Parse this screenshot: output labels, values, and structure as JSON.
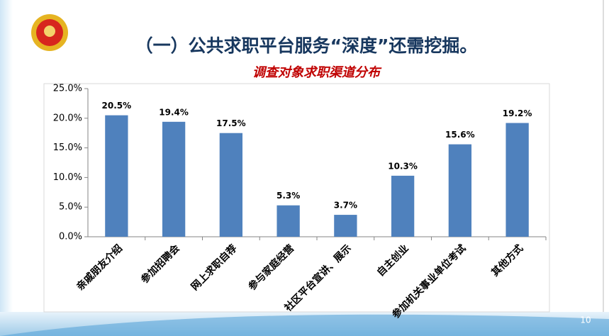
{
  "slide": {
    "title": "（一）公共求职平台服务“深度”还需挖掘。",
    "page_number": "10"
  },
  "chart_data": {
    "type": "bar",
    "title": "调查对象求职渠道分布",
    "categories": [
      "亲戚朋友介绍",
      "参加招聘会",
      "网上求职自荐",
      "参与家庭经营",
      "社区平台宣讲、展示",
      "自主创业",
      "参加机关事业单位考试",
      "其他方式"
    ],
    "values": [
      20.5,
      19.4,
      17.5,
      5.3,
      3.7,
      10.3,
      15.6,
      19.2
    ],
    "value_labels": [
      "20.5%",
      "19.4%",
      "17.5%",
      "5.3%",
      "3.7%",
      "10.3%",
      "15.6%",
      "19.2%"
    ],
    "color": "#4f81bd",
    "ylim": [
      0,
      25
    ],
    "yticks": [
      {
        "value": 0,
        "label": "0.0%"
      },
      {
        "value": 5,
        "label": "5.0%"
      },
      {
        "value": 10,
        "label": "10.0%"
      },
      {
        "value": 15,
        "label": "15.0%"
      },
      {
        "value": 20,
        "label": "20.0%"
      },
      {
        "value": 25,
        "label": "25.0%"
      }
    ],
    "grid": false
  }
}
